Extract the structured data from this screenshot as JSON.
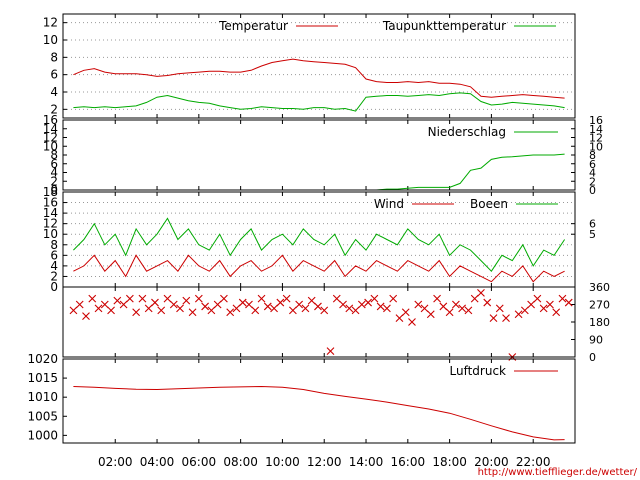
{
  "chart_data": [
    {
      "type": "line",
      "series": [
        {
          "name": "Temperatur",
          "color": "#cc0000",
          "x": [
            0,
            0.5,
            1,
            1.5,
            2,
            2.5,
            3,
            3.5,
            4,
            4.5,
            5,
            5.5,
            6,
            6.5,
            7,
            7.5,
            8,
            8.5,
            9,
            9.5,
            10,
            10.5,
            11,
            11.5,
            12,
            12.5,
            13,
            13.5,
            14,
            14.5,
            15,
            15.5,
            16,
            16.5,
            17,
            17.5,
            18,
            18.5,
            19,
            19.5,
            20,
            20.5,
            21,
            21.5,
            22,
            22.5,
            23,
            23.5
          ],
          "y": [
            6.0,
            6.5,
            6.7,
            6.3,
            6.1,
            6.1,
            6.1,
            6.0,
            5.8,
            5.9,
            6.1,
            6.2,
            6.3,
            6.4,
            6.4,
            6.3,
            6.3,
            6.5,
            7.0,
            7.4,
            7.6,
            7.8,
            7.6,
            7.5,
            7.4,
            7.3,
            7.2,
            6.8,
            5.5,
            5.2,
            5.1,
            5.1,
            5.2,
            5.1,
            5.2,
            5.0,
            5.0,
            4.9,
            4.6,
            3.5,
            3.4,
            3.5,
            3.6,
            3.7,
            3.6,
            3.5,
            3.4,
            3.3
          ]
        },
        {
          "name": "Taupunkttemperatur",
          "color": "#00aa00",
          "x": [
            0,
            0.5,
            1,
            1.5,
            2,
            2.5,
            3,
            3.5,
            4,
            4.5,
            5,
            5.5,
            6,
            6.5,
            7,
            7.5,
            8,
            8.5,
            9,
            9.5,
            10,
            10.5,
            11,
            11.5,
            12,
            12.5,
            13,
            13.5,
            14,
            14.5,
            15,
            15.5,
            16,
            16.5,
            17,
            17.5,
            18,
            18.5,
            19,
            19.5,
            20,
            20.5,
            21,
            21.5,
            22,
            22.5,
            23,
            23.5
          ],
          "y": [
            2.2,
            2.3,
            2.2,
            2.3,
            2.2,
            2.3,
            2.4,
            2.8,
            3.4,
            3.6,
            3.3,
            3.0,
            2.8,
            2.7,
            2.4,
            2.2,
            2.0,
            2.1,
            2.3,
            2.2,
            2.1,
            2.1,
            2.0,
            2.2,
            2.2,
            2.0,
            2.1,
            1.8,
            3.4,
            3.5,
            3.6,
            3.6,
            3.5,
            3.6,
            3.7,
            3.6,
            3.8,
            3.9,
            3.8,
            2.9,
            2.5,
            2.6,
            2.8,
            2.7,
            2.6,
            2.5,
            2.4,
            2.2
          ]
        }
      ],
      "xlim": [
        -0.5,
        24
      ],
      "ylim": [
        1,
        13
      ],
      "yticks": [
        2,
        4,
        6,
        8,
        10,
        12
      ],
      "grid": true,
      "legend_position": "top-right"
    },
    {
      "type": "line",
      "series": [
        {
          "name": "Niederschlag",
          "color": "#00aa00",
          "x": [
            0,
            13.5,
            14.5,
            15,
            15.5,
            16,
            16.5,
            17,
            17.5,
            18,
            18.5,
            19,
            19.5,
            20,
            20.5,
            21,
            21.5,
            22,
            22.5,
            23,
            23.5
          ],
          "y": [
            0,
            0,
            0,
            0.2,
            0.2,
            0.4,
            0.6,
            0.6,
            0.6,
            0.6,
            1.5,
            4.5,
            5.0,
            7.0,
            7.5,
            7.6,
            7.8,
            8.0,
            8.0,
            8.0,
            8.2
          ]
        }
      ],
      "xlim": [
        -0.5,
        24
      ],
      "ylim": [
        0,
        16
      ],
      "yticks": [
        0,
        2,
        4,
        6,
        8,
        10,
        12,
        14,
        16
      ],
      "legend_position": "top-right"
    },
    {
      "type": "line",
      "series": [
        {
          "name": "Wind",
          "color": "#cc0000",
          "x": [
            0,
            0.5,
            1,
            1.5,
            2,
            2.5,
            3,
            3.5,
            4,
            4.5,
            5,
            5.5,
            6,
            6.5,
            7,
            7.5,
            8,
            8.5,
            9,
            9.5,
            10,
            10.5,
            11,
            11.5,
            12,
            12.5,
            13,
            13.5,
            14,
            14.5,
            15,
            15.5,
            16,
            16.5,
            17,
            17.5,
            18,
            18.5,
            19,
            19.5,
            20,
            20.5,
            21,
            21.5,
            22,
            22.5,
            23,
            23.5
          ],
          "y": [
            3,
            4,
            6,
            3,
            5,
            2,
            6,
            3,
            4,
            5,
            3,
            6,
            4,
            3,
            5,
            2,
            4,
            5,
            3,
            4,
            6,
            3,
            5,
            4,
            3,
            5,
            2,
            4,
            3,
            5,
            4,
            3,
            5,
            4,
            3,
            5,
            2,
            4,
            3,
            2,
            1,
            3,
            2,
            4,
            1,
            3,
            2,
            3
          ]
        },
        {
          "name": "Boeen",
          "color": "#00aa00",
          "x": [
            0,
            0.5,
            1,
            1.5,
            2,
            2.5,
            3,
            3.5,
            4,
            4.5,
            5,
            5.5,
            6,
            6.5,
            7,
            7.5,
            8,
            8.5,
            9,
            9.5,
            10,
            10.5,
            11,
            11.5,
            12,
            12.5,
            13,
            13.5,
            14,
            14.5,
            15,
            15.5,
            16,
            16.5,
            17,
            17.5,
            18,
            18.5,
            19,
            19.5,
            20,
            20.5,
            21,
            21.5,
            22,
            22.5,
            23,
            23.5
          ],
          "y": [
            7,
            9,
            12,
            8,
            10,
            6,
            11,
            8,
            10,
            13,
            9,
            11,
            8,
            7,
            10,
            6,
            9,
            11,
            7,
            9,
            10,
            8,
            11,
            9,
            8,
            10,
            6,
            9,
            7,
            10,
            9,
            8,
            11,
            9,
            8,
            10,
            6,
            8,
            7,
            5,
            3,
            6,
            5,
            8,
            4,
            7,
            6,
            9
          ]
        }
      ],
      "xlim": [
        -0.5,
        24
      ],
      "ylim": [
        0,
        18
      ],
      "yticks": [
        0,
        2,
        4,
        6,
        8,
        10,
        12,
        14,
        16,
        18
      ],
      "y2ticks": [
        5,
        6
      ],
      "grid": true,
      "legend_position": "top-right"
    },
    {
      "type": "scatter",
      "series": [
        {
          "color": "#cc0000",
          "marker": "x",
          "x": [
            0,
            0.3,
            0.6,
            0.9,
            1.2,
            1.5,
            1.8,
            2.1,
            2.4,
            2.7,
            3.0,
            3.3,
            3.6,
            3.9,
            4.2,
            4.5,
            4.8,
            5.1,
            5.4,
            5.7,
            6.0,
            6.3,
            6.6,
            6.9,
            7.2,
            7.5,
            7.8,
            8.1,
            8.4,
            8.7,
            9.0,
            9.3,
            9.6,
            9.9,
            10.2,
            10.5,
            10.8,
            11.1,
            11.4,
            11.7,
            12.0,
            12.3,
            12.6,
            12.9,
            13.2,
            13.5,
            13.8,
            14.1,
            14.4,
            14.7,
            15.0,
            15.3,
            15.6,
            15.9,
            16.2,
            16.5,
            16.8,
            17.1,
            17.4,
            17.7,
            18.0,
            18.3,
            18.6,
            18.9,
            19.2,
            19.5,
            19.8,
            20.1,
            20.4,
            20.7,
            21.0,
            21.3,
            21.6,
            21.9,
            22.2,
            22.5,
            22.8,
            23.1,
            23.4,
            23.7
          ],
          "y": [
            240,
            270,
            210,
            300,
            250,
            270,
            240,
            290,
            270,
            300,
            230,
            300,
            250,
            280,
            240,
            300,
            270,
            250,
            290,
            230,
            300,
            260,
            240,
            270,
            300,
            230,
            250,
            280,
            270,
            240,
            300,
            260,
            250,
            280,
            300,
            240,
            270,
            250,
            290,
            260,
            240,
            30,
            300,
            270,
            250,
            240,
            270,
            280,
            300,
            260,
            250,
            300,
            200,
            230,
            180,
            270,
            250,
            220,
            300,
            260,
            230,
            270,
            250,
            240,
            300,
            330,
            280,
            200,
            250,
            200,
            0,
            220,
            240,
            270,
            300,
            250,
            270,
            230,
            300,
            280
          ]
        }
      ],
      "xlim": [
        -0.5,
        24
      ],
      "ylim": [
        0,
        360
      ],
      "y2ticks": [
        0,
        90,
        180,
        270,
        360
      ]
    },
    {
      "type": "line",
      "series": [
        {
          "name": "Luftdruck",
          "color": "#cc0000",
          "x": [
            0,
            1,
            2,
            3,
            4,
            5,
            6,
            7,
            8,
            9,
            10,
            11,
            12,
            13,
            14,
            15,
            16,
            17,
            18,
            19,
            20,
            21,
            22,
            23,
            23.5
          ],
          "y": [
            1012.8,
            1012.6,
            1012.3,
            1012.1,
            1012.0,
            1012.2,
            1012.4,
            1012.6,
            1012.7,
            1012.8,
            1012.6,
            1012.0,
            1011.0,
            1010.2,
            1009.5,
            1008.7,
            1007.8,
            1006.9,
            1005.8,
            1004.2,
            1002.5,
            1000.9,
            999.6,
            998.8,
            998.9
          ]
        }
      ],
      "xlim": [
        -0.5,
        24
      ],
      "ylim": [
        998,
        1020
      ],
      "yticks": [
        1000,
        1005,
        1010,
        1015,
        1020
      ],
      "legend_position": "top-right"
    }
  ],
  "x_tick_labels": [
    "02:00",
    "04:00",
    "06:00",
    "08:00",
    "10:00",
    "12:00",
    "14:00",
    "16:00",
    "18:00",
    "20:00",
    "22:00"
  ],
  "x_tick_hours": [
    2,
    4,
    6,
    8,
    10,
    12,
    14,
    16,
    18,
    20,
    22
  ],
  "source_url": "http://www.tiefflieger.de/wetter/"
}
